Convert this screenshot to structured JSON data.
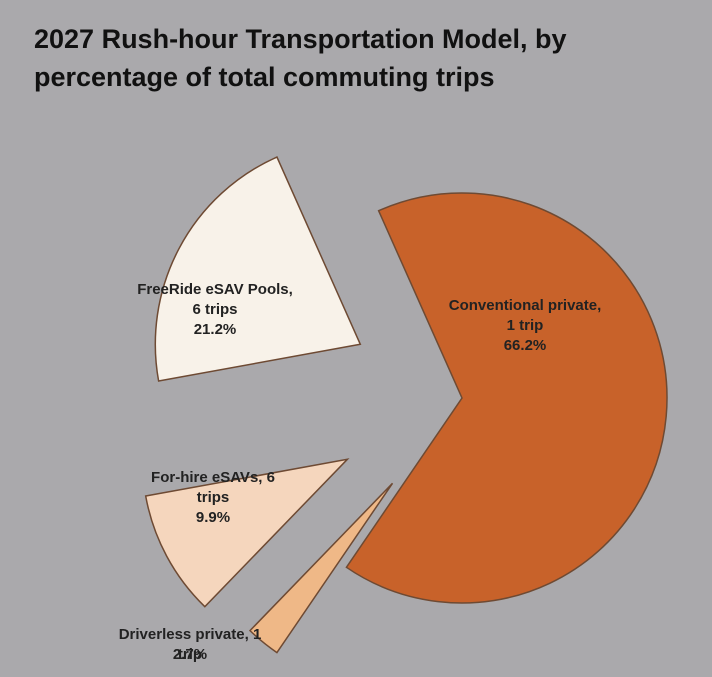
{
  "chart_data": {
    "type": "pie",
    "title": "2027 Rush-hour Transportation Model, by percentage of total commuting trips",
    "categories": [
      "Conventional private, 1 trip",
      "Driverless private, 1 trip",
      "For-hire eSAVs, 6 trips",
      "FreeRide eSAV Pools, 6 trips"
    ],
    "values": [
      66.2,
      2.7,
      9.9,
      21.2
    ],
    "value_labels": [
      "66.2%",
      "2.7%",
      "9.9%",
      "21.2%"
    ],
    "colors": [
      "#c8622a",
      "#efb887",
      "#f5d6bd",
      "#f8f2e9"
    ]
  }
}
